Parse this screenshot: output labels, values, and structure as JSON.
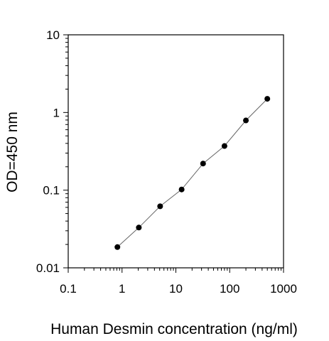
{
  "chart_data": {
    "type": "scatter",
    "title": "",
    "xlabel": "Human Desmin concentration (ng/ml)",
    "ylabel": "OD=450 nm",
    "x_scale": "log",
    "y_scale": "log",
    "xlim": [
      0.1,
      1000
    ],
    "ylim": [
      0.01,
      10
    ],
    "x_ticks": [
      0.1,
      1,
      10,
      100,
      1000
    ],
    "x_tick_labels": [
      "0.1",
      "1",
      "10",
      "100",
      "1000"
    ],
    "y_ticks": [
      0.01,
      0.1,
      1,
      10
    ],
    "y_tick_labels": [
      "0.01",
      "0.1",
      "1",
      "10"
    ],
    "grid": false,
    "legend": "none",
    "series": [
      {
        "x": [
          0.82,
          2.05,
          5.1,
          12.8,
          32,
          80,
          200,
          500
        ],
        "y": [
          0.0185,
          0.033,
          0.062,
          0.102,
          0.22,
          0.37,
          0.79,
          1.5
        ],
        "marker_color": "#000000",
        "line_color": "#666666"
      }
    ]
  }
}
